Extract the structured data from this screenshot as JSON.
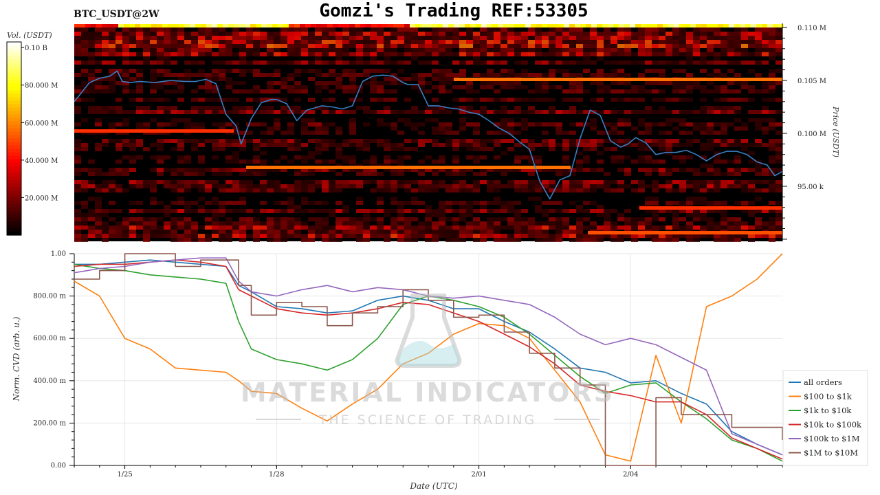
{
  "header": {
    "symbol": "BTC_USDT@2W",
    "title": "Gomzi's Trading REF:53305"
  },
  "watermark": {
    "brand": "MATERIAL INDICATORS",
    "tagline": "THE SCIENCE OF TRADING"
  },
  "colors": {
    "price_line": "#3a7fc4",
    "heatmap_background": "#000000",
    "plot_background": "#ffffff"
  },
  "chart_data": [
    {
      "type": "heatmap",
      "title": "",
      "colorbar_label": "Vol. (USDT)",
      "colorbar_ticks": [
        "0.10 B",
        "80.000 M",
        "60.000 M",
        "40.000 M",
        "20.000 M"
      ],
      "colorbar_values": [
        100000000,
        80000000,
        60000000,
        40000000,
        20000000
      ],
      "colormap": "hot",
      "ylabel": "Price (USDT)",
      "ytick_labels": [
        "0.110 M",
        "0.105 M",
        "0.100 M",
        "95.00 k"
      ],
      "ytick_values": [
        110000,
        105000,
        100000,
        95000
      ],
      "ylim": [
        89800,
        110000
      ],
      "xlim": [
        0,
        14
      ],
      "series": [
        {
          "x": [
            0,
            0.12,
            0.3,
            0.5,
            0.7,
            0.85,
            0.95,
            1.1,
            1.3,
            1.6,
            1.9,
            2.2,
            2.4,
            2.6,
            2.8,
            3.0,
            3.2,
            3.3,
            3.5,
            3.7,
            3.9,
            4.0,
            4.2,
            4.4,
            4.6,
            4.9,
            5.1,
            5.3,
            5.5,
            5.7,
            5.9,
            6.1,
            6.3,
            6.5,
            6.6,
            6.8,
            7.0,
            7.2,
            7.4,
            7.6,
            7.8,
            8.0,
            8.2,
            8.4,
            8.6,
            8.8,
            9.0,
            9.2,
            9.4,
            9.6,
            9.8,
            10.0,
            10.2,
            10.4,
            10.6,
            10.8,
            10.95,
            11.1,
            11.3,
            11.5,
            11.7,
            11.9,
            12.1,
            12.3,
            12.5,
            12.7,
            12.9,
            13.1,
            13.3,
            13.5,
            13.7,
            13.85,
            14.0
          ],
          "y": [
            103000,
            103700,
            104800,
            105200,
            105400,
            105900,
            104900,
            104800,
            104900,
            104800,
            105000,
            104900,
            104900,
            105100,
            104700,
            101800,
            100700,
            99000,
            101400,
            102900,
            103200,
            103200,
            102800,
            101200,
            102200,
            102600,
            102500,
            102300,
            102600,
            104900,
            105400,
            105500,
            105400,
            104800,
            104600,
            104600,
            102600,
            102600,
            102400,
            102300,
            102000,
            101800,
            101200,
            100500,
            100000,
            99200,
            98500,
            95500,
            93800,
            95600,
            96000,
            99500,
            102200,
            101700,
            99300,
            98700,
            99000,
            99600,
            99100,
            98000,
            98200,
            98200,
            98400,
            98000,
            97400,
            98000,
            98300,
            98300,
            98000,
            97300,
            97000,
            96000,
            96400
          ],
          "color": "#3a7fc4"
        }
      ]
    },
    {
      "type": "line",
      "title": "",
      "xlabel": "Date (UTC)",
      "ylabel": "Norm. CVD (arb. u.)",
      "ylim": [
        0,
        1
      ],
      "ytick_labels": [
        "1.00",
        "800.00 m",
        "600.00 m",
        "400.00 m",
        "200.00 m",
        "0.00"
      ],
      "ytick_values": [
        1,
        0.8,
        0.6,
        0.4,
        0.2,
        0
      ],
      "xtick_labels": [
        "1/25",
        "1/28",
        "2/01",
        "2/04"
      ],
      "xtick_positions": [
        1,
        4,
        8,
        11
      ],
      "grid": true,
      "legend_position": "right",
      "x": [
        0,
        0.5,
        1,
        1.5,
        2,
        2.5,
        3,
        3.25,
        3.5,
        4,
        4.5,
        5,
        5.5,
        6,
        6.5,
        7,
        7.5,
        8,
        8.5,
        9,
        9.5,
        10,
        10.5,
        11,
        11.5,
        12,
        12.5,
        13,
        13.5,
        14
      ],
      "series": [
        {
          "name": "all orders",
          "color": "#1f77b4",
          "values": [
            0.95,
            0.95,
            0.96,
            0.97,
            0.96,
            0.95,
            0.94,
            0.85,
            0.82,
            0.75,
            0.74,
            0.72,
            0.73,
            0.78,
            0.8,
            0.78,
            0.74,
            0.74,
            0.68,
            0.63,
            0.55,
            0.46,
            0.44,
            0.39,
            0.4,
            0.34,
            0.29,
            0.16,
            0.1,
            0.05
          ]
        },
        {
          "name": "$100 to $1k",
          "color": "#ff7f0e",
          "values": [
            0.87,
            0.8,
            0.6,
            0.55,
            0.46,
            0.45,
            0.44,
            0.4,
            0.35,
            0.34,
            0.27,
            0.21,
            0.29,
            0.36,
            0.48,
            0.53,
            0.62,
            0.67,
            0.66,
            0.6,
            0.45,
            0.3,
            0.05,
            0.02,
            0.52,
            0.2,
            0.75,
            0.8,
            0.88,
            1.0
          ]
        },
        {
          "name": "$1k to $10k",
          "color": "#2ca02c",
          "values": [
            0.95,
            0.93,
            0.92,
            0.9,
            0.89,
            0.88,
            0.86,
            0.68,
            0.55,
            0.5,
            0.48,
            0.45,
            0.5,
            0.6,
            0.76,
            0.8,
            0.78,
            0.75,
            0.7,
            0.62,
            0.52,
            0.42,
            0.34,
            0.38,
            0.39,
            0.3,
            0.22,
            0.12,
            0.08,
            0.02
          ]
        },
        {
          "name": "$10k to $100k",
          "color": "#d62728",
          "values": [
            0.94,
            0.95,
            0.95,
            0.96,
            0.97,
            0.96,
            0.94,
            0.83,
            0.8,
            0.74,
            0.72,
            0.71,
            0.72,
            0.74,
            0.77,
            0.76,
            0.72,
            0.68,
            0.62,
            0.56,
            0.48,
            0.38,
            0.35,
            0.33,
            0.3,
            0.3,
            0.24,
            0.13,
            0.08,
            0.03
          ]
        },
        {
          "name": "$100k to $1M",
          "color": "#9467bd",
          "values": [
            0.91,
            0.93,
            0.94,
            0.96,
            0.97,
            0.98,
            0.98,
            0.87,
            0.82,
            0.8,
            0.83,
            0.85,
            0.82,
            0.84,
            0.83,
            0.8,
            0.79,
            0.8,
            0.78,
            0.76,
            0.7,
            0.62,
            0.57,
            0.6,
            0.57,
            0.51,
            0.45,
            0.15,
            0.1,
            0.05
          ]
        },
        {
          "name": "$1M to $10M",
          "color": "#8c564b",
          "values": [
            0.88,
            0.92,
            1.0,
            1.0,
            0.94,
            0.97,
            0.97,
            0.85,
            0.71,
            0.77,
            0.75,
            0.66,
            0.72,
            0.75,
            0.83,
            0.78,
            0.7,
            0.71,
            0.63,
            0.53,
            0.46,
            0.38,
            0.0,
            0.0,
            0.32,
            0.24,
            0.24,
            0.18,
            0.18,
            0.12
          ]
        }
      ]
    }
  ]
}
